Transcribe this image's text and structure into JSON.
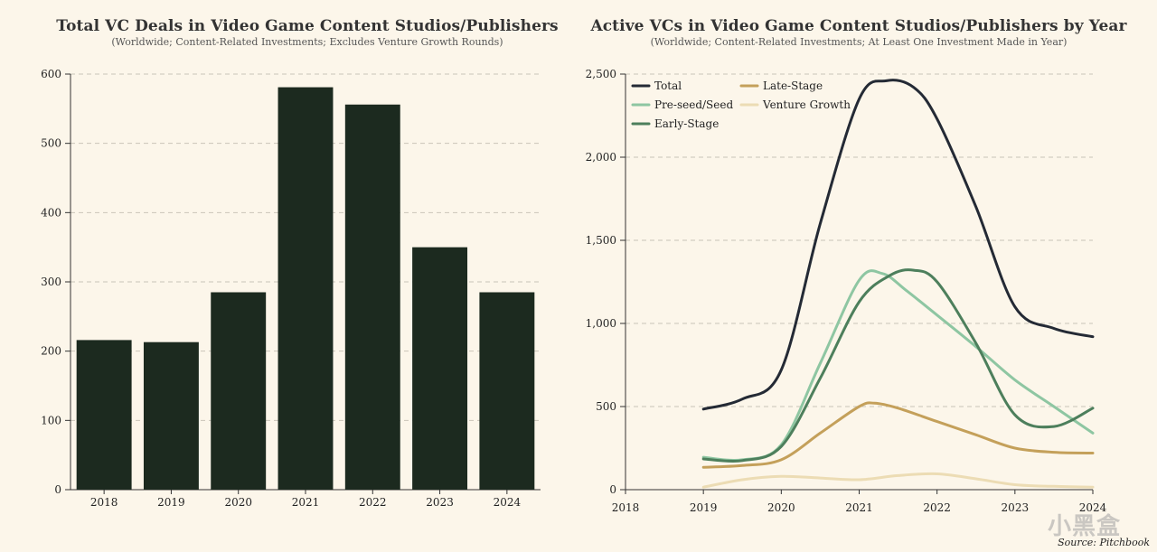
{
  "source": "Source: Pitchbook",
  "watermark": "小黑盒",
  "chart_data": [
    {
      "type": "bar",
      "title": "Total VC Deals in Video Game Content Studios/Publishers",
      "subtitle": "(Worldwide; Content-Related Investments; Excludes Venture Growth Rounds)",
      "categories": [
        "2018",
        "2019",
        "2020",
        "2021",
        "2022",
        "2023",
        "2024"
      ],
      "values": [
        216,
        213,
        285,
        581,
        556,
        350,
        285
      ],
      "ylim": [
        0,
        600
      ],
      "yticks": [
        0,
        100,
        200,
        300,
        400,
        500,
        600
      ],
      "ytick_labels": [
        "0",
        "100",
        "200",
        "300",
        "400",
        "500",
        "600"
      ],
      "color": "#1c2a1f",
      "grid": true
    },
    {
      "type": "line",
      "title": "Active VCs in Video Game Content Studios/Publishers by Year",
      "subtitle": "(Worldwide; Content-Related Investments; At Least One Investment Made in Year)",
      "xlim": [
        2018,
        2024
      ],
      "xticks": [
        "2018",
        "2019",
        "2020",
        "2021",
        "2022",
        "2023",
        "2024"
      ],
      "ylim": [
        0,
        2500
      ],
      "yticks": [
        0,
        500,
        1000,
        1500,
        2000,
        2500
      ],
      "ytick_labels": [
        "0",
        "500",
        "1,000",
        "1,500",
        "2,000",
        "2,500"
      ],
      "grid": true,
      "legend_position": "top-left",
      "series": [
        {
          "name": "Total",
          "color": "#242a35",
          "x": [
            2019,
            2019.5,
            2020,
            2020.5,
            2021,
            2021.35,
            2021.7,
            2022,
            2022.5,
            2023,
            2023.5,
            2024
          ],
          "y": [
            485,
            545,
            720,
            1600,
            2350,
            2460,
            2420,
            2230,
            1700,
            1100,
            970,
            920
          ]
        },
        {
          "name": "Pre-seed/Seed",
          "color": "#8ec6a2",
          "x": [
            2019,
            2019.5,
            2020,
            2020.5,
            2021,
            2021.3,
            2021.6,
            2022,
            2022.5,
            2023,
            2023.5,
            2024
          ],
          "y": [
            195,
            180,
            270,
            760,
            1260,
            1300,
            1200,
            1050,
            860,
            660,
            500,
            340
          ]
        },
        {
          "name": "Early-Stage",
          "color": "#4d7f5c",
          "x": [
            2019,
            2019.5,
            2020,
            2020.5,
            2021,
            2021.4,
            2021.7,
            2022,
            2022.5,
            2023,
            2023.5,
            2024
          ],
          "y": [
            185,
            175,
            260,
            670,
            1130,
            1290,
            1320,
            1250,
            880,
            450,
            380,
            490
          ]
        },
        {
          "name": "Late-Stage",
          "color": "#c4a05a",
          "x": [
            2019,
            2019.5,
            2020,
            2020.5,
            2021,
            2021.2,
            2021.5,
            2022,
            2022.5,
            2023,
            2023.5,
            2024
          ],
          "y": [
            135,
            145,
            180,
            340,
            500,
            520,
            490,
            410,
            330,
            250,
            225,
            220
          ]
        },
        {
          "name": "Venture Growth",
          "color": "#ecdcb4",
          "x": [
            2019,
            2019.5,
            2020,
            2020.5,
            2021,
            2021.5,
            2022,
            2022.5,
            2023,
            2023.5,
            2024
          ],
          "y": [
            15,
            60,
            80,
            70,
            60,
            85,
            95,
            65,
            30,
            20,
            15
          ]
        }
      ]
    }
  ]
}
